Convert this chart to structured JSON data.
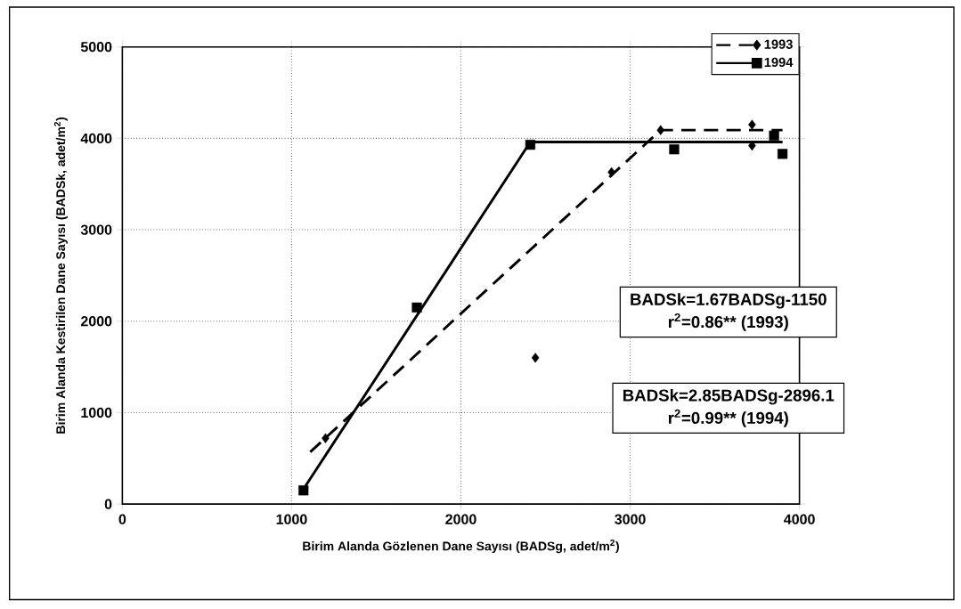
{
  "chart_data": {
    "type": "scatter",
    "xlabel": "Birim Alanda Gözlenen Dane Sayısı (BADSg, adet/m$^{2}$)",
    "ylabel": "Birim Alanda Kestirilen Dane Sayısı (BADSk, adet/m$^{2}$)",
    "xlim": [
      0,
      4000
    ],
    "ylim": [
      0,
      5000
    ],
    "xticks": [
      0,
      1000,
      2000,
      3000,
      4000
    ],
    "yticks": [
      0,
      1000,
      2000,
      3000,
      4000,
      5000
    ],
    "grid": true,
    "legend": "top right",
    "series": [
      {
        "name": "1993",
        "marker": "diamond",
        "color": "#000000",
        "x": [
          1200,
          2440,
          2890,
          3180,
          3720,
          3720
        ],
        "values": [
          720,
          1600,
          3630,
          4090,
          4150,
          3920
        ]
      },
      {
        "type": "line",
        "line_style": "dashed",
        "marker": "none",
        "color": "#000000",
        "x": [
          1110,
          3180,
          3900
        ],
        "values": [
          570,
          4090,
          4090
        ]
      },
      {
        "name": "1994",
        "marker": "square",
        "color": "#000000",
        "x": [
          1070,
          1740,
          2410,
          3260,
          3850,
          3900
        ],
        "values": [
          150,
          2150,
          3930,
          3880,
          4030,
          3830
        ]
      },
      {
        "type": "line",
        "line_style": "solid",
        "marker": "none",
        "color": "#000000",
        "x": [
          1065,
          2410,
          3900
        ],
        "values": [
          150,
          3960,
          3960
        ]
      }
    ],
    "annotations": [
      "BADSk=1.67BADSg-1150",
      "r$^{2}$=0.86** (1993)",
      "BADSk=2.85BADSg-2896.1",
      "r$^{2}$=0.99** (1994)"
    ]
  }
}
